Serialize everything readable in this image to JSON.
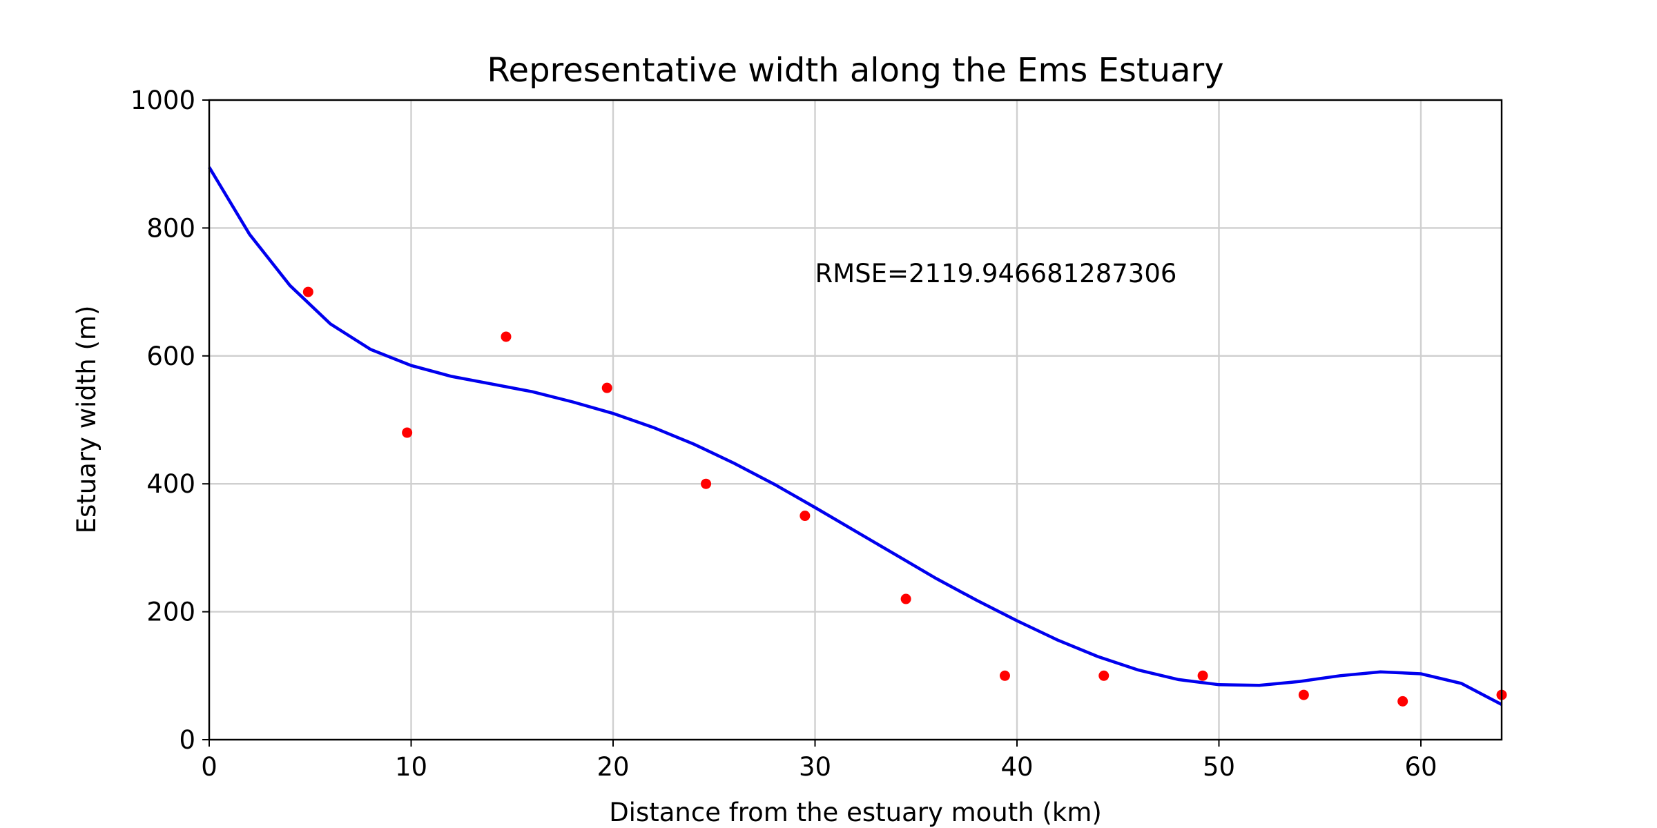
{
  "chart_data": {
    "type": "scatter",
    "title": "Representative width along the Ems Estuary",
    "xlabel": "Distance from the estuary mouth (km)",
    "ylabel": "Estuary width (m)",
    "xlim": [
      0,
      64
    ],
    "ylim": [
      0,
      1000
    ],
    "xticks": [
      0,
      10,
      20,
      30,
      40,
      50,
      60
    ],
    "yticks": [
      0,
      200,
      400,
      600,
      800,
      1000
    ],
    "grid": true,
    "annotation": {
      "text": "RMSE=2119.946681287306",
      "x": 30,
      "y": 715
    },
    "series": [
      {
        "type": "scatter",
        "color": "#ff0000",
        "x": [
          4.9,
          9.8,
          14.7,
          19.7,
          24.6,
          29.5,
          34.5,
          39.4,
          44.3,
          49.2,
          54.2,
          59.1,
          64.0
        ],
        "y": [
          700,
          480,
          630,
          550,
          400,
          350,
          220,
          100,
          100,
          100,
          70,
          60,
          70
        ]
      },
      {
        "type": "line",
        "color": "#0000ee",
        "x": [
          0,
          2,
          4,
          6,
          8,
          10,
          12,
          14,
          16,
          18,
          20,
          22,
          24,
          26,
          28,
          30,
          32,
          34,
          36,
          38,
          40,
          42,
          44,
          46,
          48,
          50,
          52,
          54,
          56,
          58,
          60,
          62,
          64
        ],
        "y": [
          895,
          790,
          710,
          650,
          610,
          585,
          568,
          556,
          544,
          528,
          510,
          488,
          462,
          432,
          399,
          363,
          326,
          289,
          252,
          218,
          186,
          156,
          130,
          109,
          94,
          86,
          85,
          91,
          100,
          106,
          103,
          88,
          55
        ]
      }
    ]
  }
}
